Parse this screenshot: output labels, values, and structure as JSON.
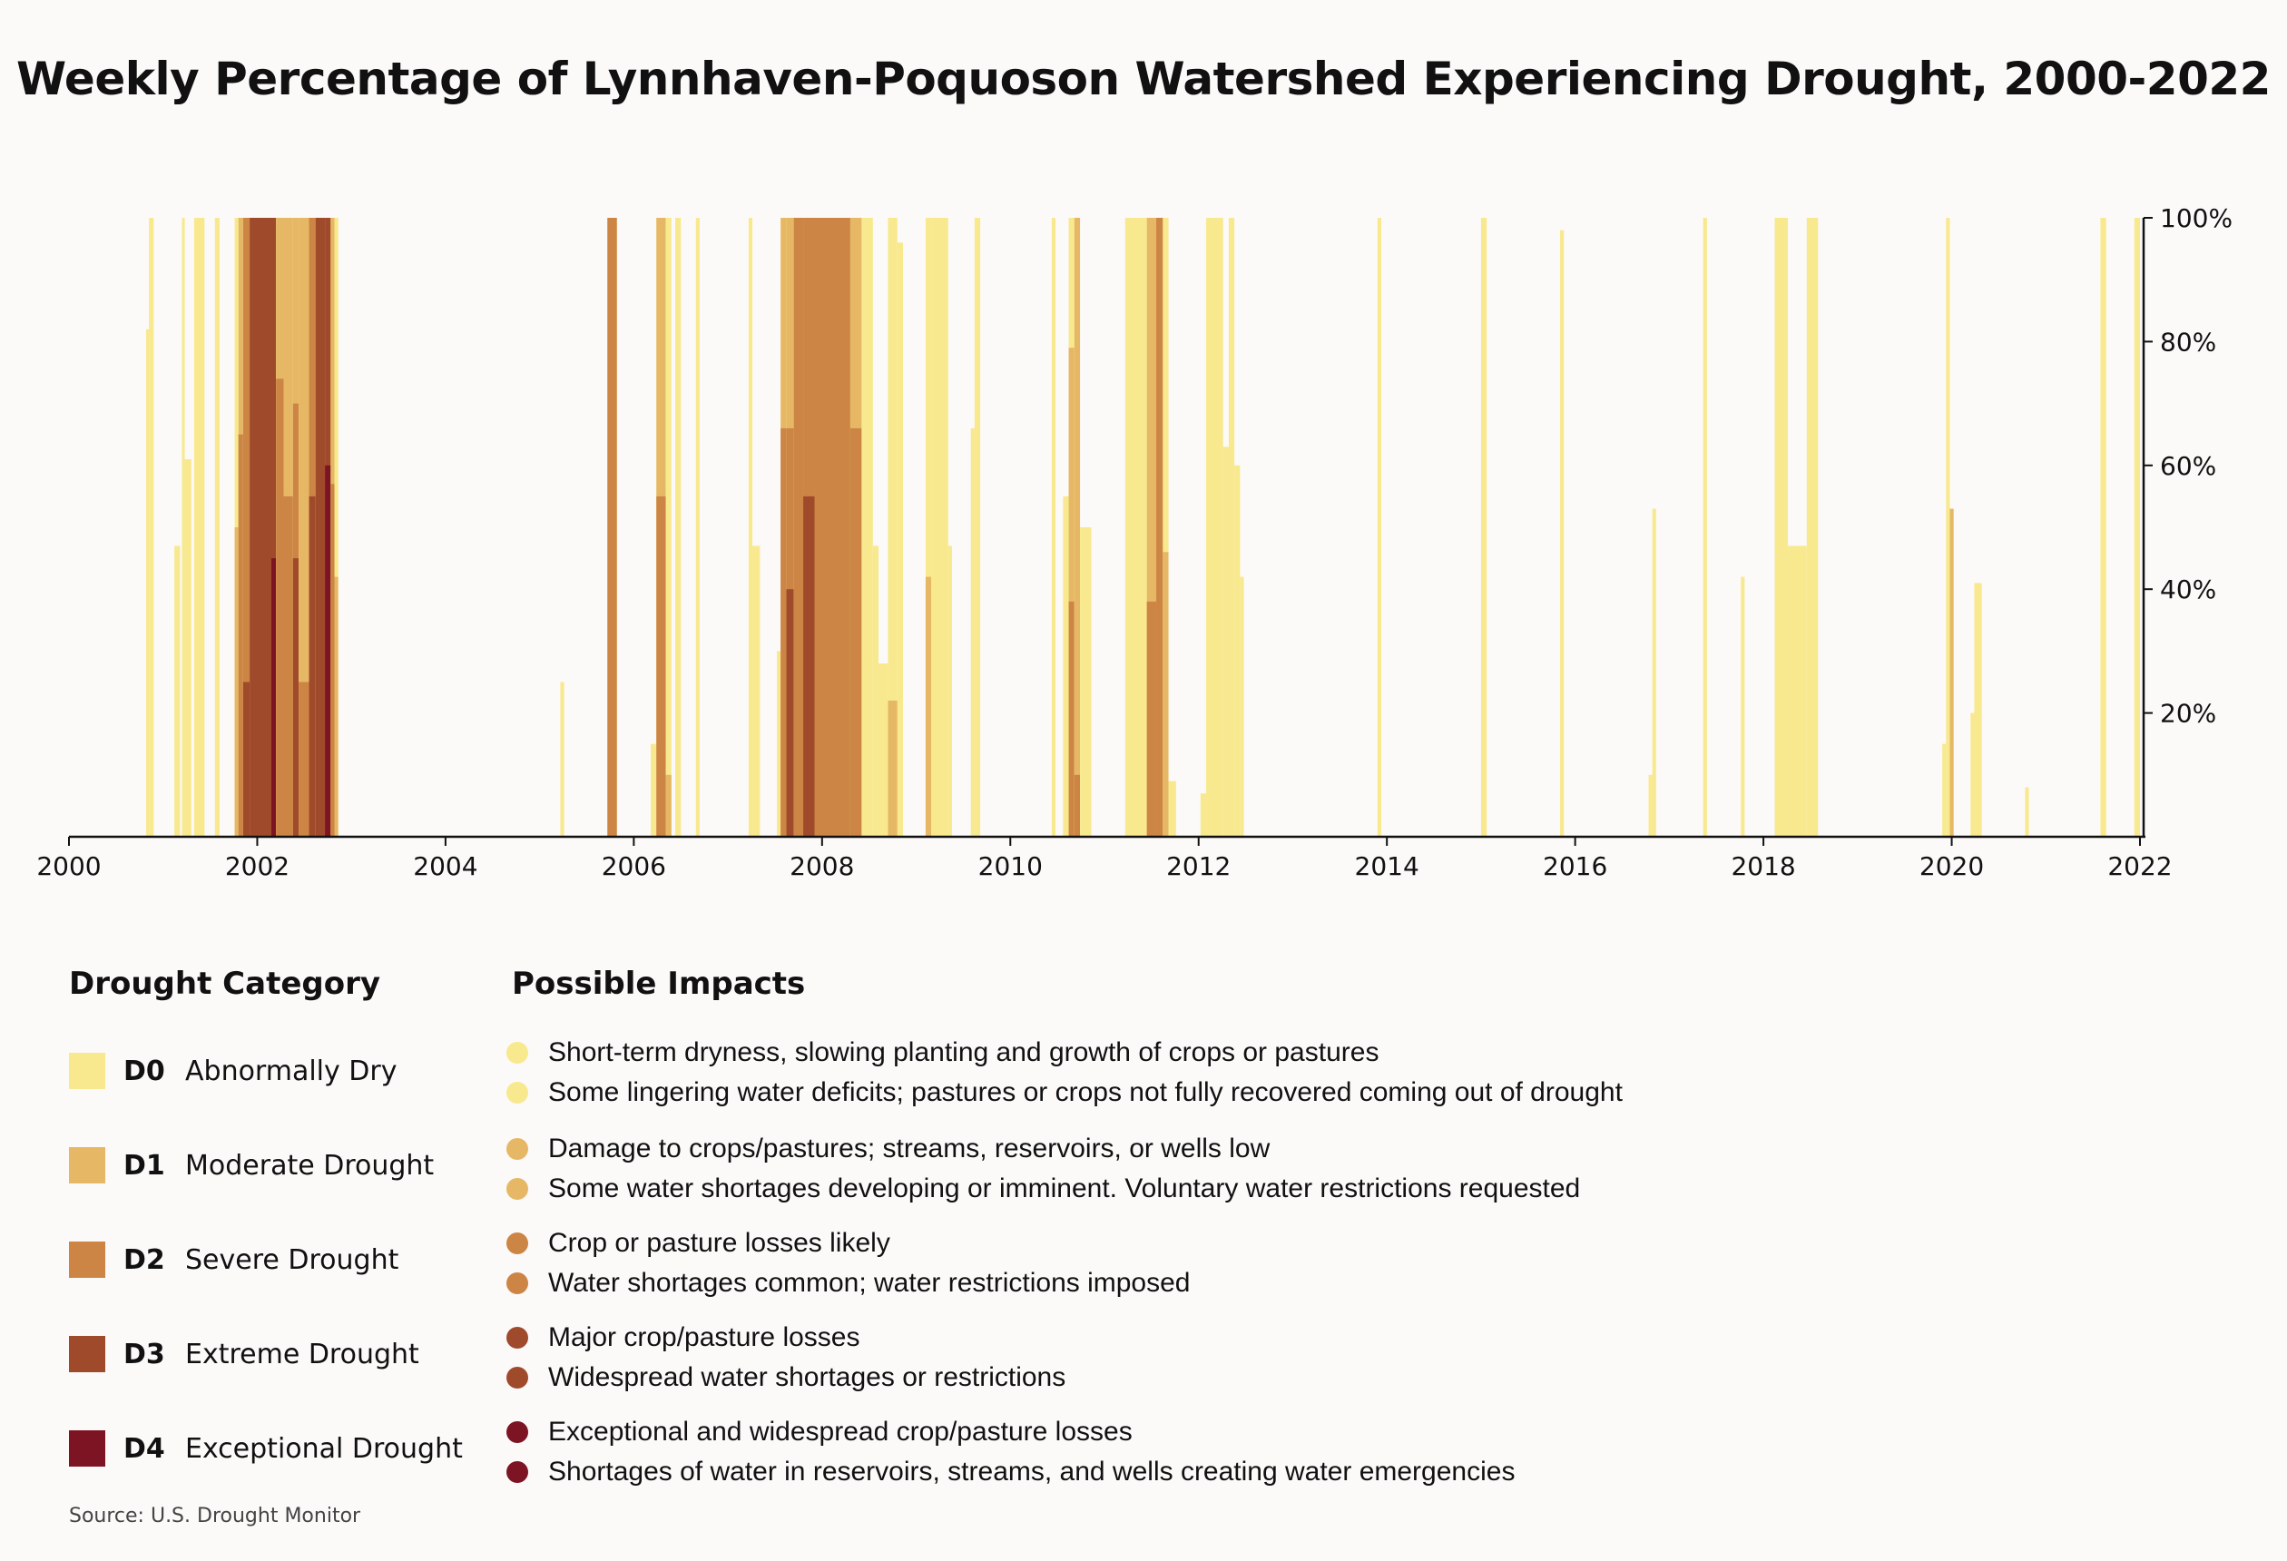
{
  "chart_data": {
    "type": "area",
    "title": "Weekly Percentage of Lynnhaven-Poquoson Watershed Experiencing Drought, 2000-2022",
    "xlabel": "",
    "ylabel": "",
    "xlim": [
      2000,
      2022
    ],
    "ylim": [
      0,
      100
    ],
    "x_ticks": [
      "2000",
      "2002",
      "2004",
      "2006",
      "2008",
      "2010",
      "2012",
      "2014",
      "2016",
      "2018",
      "2020",
      "2022"
    ],
    "y_ticks": [
      "20%",
      "40%",
      "60%",
      "80%",
      "100%"
    ],
    "y_axis_side": "right",
    "grid": false,
    "note": "Approximate weekly coverage read off the figure; each episode lists the start/end year and percent of area in each category (D0 = any drought or dryness, D1..D4 = at least that category).",
    "series_names": [
      "D0",
      "D1",
      "D2",
      "D3",
      "D4"
    ],
    "episodes": [
      {
        "start": 2000.82,
        "end": 2000.85,
        "D0": 82,
        "D1": 0,
        "D2": 0,
        "D3": 0,
        "D4": 0
      },
      {
        "start": 2000.85,
        "end": 2000.9,
        "D0": 100,
        "D1": 0,
        "D2": 0,
        "D3": 0,
        "D4": 0
      },
      {
        "start": 2001.12,
        "end": 2001.18,
        "D0": 47,
        "D1": 0,
        "D2": 0,
        "D3": 0,
        "D4": 0
      },
      {
        "start": 2001.2,
        "end": 2001.23,
        "D0": 100,
        "D1": 0,
        "D2": 0,
        "D3": 0,
        "D4": 0
      },
      {
        "start": 2001.23,
        "end": 2001.3,
        "D0": 61,
        "D1": 0,
        "D2": 0,
        "D3": 0,
        "D4": 0
      },
      {
        "start": 2001.33,
        "end": 2001.44,
        "D0": 100,
        "D1": 0,
        "D2": 0,
        "D3": 0,
        "D4": 0
      },
      {
        "start": 2001.55,
        "end": 2001.6,
        "D0": 100,
        "D1": 0,
        "D2": 0,
        "D3": 0,
        "D4": 0
      },
      {
        "start": 2001.76,
        "end": 2001.8,
        "D0": 100,
        "D1": 50,
        "D2": 0,
        "D3": 0,
        "D4": 0
      },
      {
        "start": 2001.8,
        "end": 2001.85,
        "D0": 100,
        "D1": 100,
        "D2": 65,
        "D3": 0,
        "D4": 0
      },
      {
        "start": 2001.85,
        "end": 2001.92,
        "D0": 100,
        "D1": 100,
        "D2": 100,
        "D3": 25,
        "D4": 0
      },
      {
        "start": 2001.92,
        "end": 2002.15,
        "D0": 100,
        "D1": 100,
        "D2": 100,
        "D3": 100,
        "D4": 0
      },
      {
        "start": 2002.15,
        "end": 2002.2,
        "D0": 100,
        "D1": 100,
        "D2": 100,
        "D3": 100,
        "D4": 45
      },
      {
        "start": 2002.2,
        "end": 2002.28,
        "D0": 100,
        "D1": 100,
        "D2": 74,
        "D3": 0,
        "D4": 0
      },
      {
        "start": 2002.28,
        "end": 2002.38,
        "D0": 100,
        "D1": 100,
        "D2": 55,
        "D3": 0,
        "D4": 0
      },
      {
        "start": 2002.38,
        "end": 2002.44,
        "D0": 100,
        "D1": 100,
        "D2": 70,
        "D3": 45,
        "D4": 0
      },
      {
        "start": 2002.44,
        "end": 2002.55,
        "D0": 100,
        "D1": 100,
        "D2": 25,
        "D3": 0,
        "D4": 0
      },
      {
        "start": 2002.55,
        "end": 2002.62,
        "D0": 100,
        "D1": 100,
        "D2": 100,
        "D3": 55,
        "D4": 0
      },
      {
        "start": 2002.62,
        "end": 2002.72,
        "D0": 100,
        "D1": 100,
        "D2": 100,
        "D3": 100,
        "D4": 0
      },
      {
        "start": 2002.72,
        "end": 2002.78,
        "D0": 100,
        "D1": 100,
        "D2": 100,
        "D3": 100,
        "D4": 60
      },
      {
        "start": 2002.78,
        "end": 2002.82,
        "D0": 100,
        "D1": 100,
        "D2": 57,
        "D3": 0,
        "D4": 0
      },
      {
        "start": 2002.82,
        "end": 2002.86,
        "D0": 100,
        "D1": 42,
        "D2": 0,
        "D3": 0,
        "D4": 0
      },
      {
        "start": 2005.22,
        "end": 2005.26,
        "D0": 25,
        "D1": 0,
        "D2": 0,
        "D3": 0,
        "D4": 0
      },
      {
        "start": 2005.72,
        "end": 2005.82,
        "D0": 100,
        "D1": 100,
        "D2": 100,
        "D3": 0,
        "D4": 0
      },
      {
        "start": 2006.18,
        "end": 2006.24,
        "D0": 15,
        "D1": 0,
        "D2": 0,
        "D3": 0,
        "D4": 0
      },
      {
        "start": 2006.24,
        "end": 2006.34,
        "D0": 100,
        "D1": 100,
        "D2": 55,
        "D3": 0,
        "D4": 0
      },
      {
        "start": 2006.34,
        "end": 2006.4,
        "D0": 100,
        "D1": 10,
        "D2": 0,
        "D3": 0,
        "D4": 0
      },
      {
        "start": 2006.44,
        "end": 2006.5,
        "D0": 100,
        "D1": 0,
        "D2": 0,
        "D3": 0,
        "D4": 0
      },
      {
        "start": 2006.66,
        "end": 2006.7,
        "D0": 100,
        "D1": 0,
        "D2": 0,
        "D3": 0,
        "D4": 0
      },
      {
        "start": 2007.22,
        "end": 2007.26,
        "D0": 100,
        "D1": 0,
        "D2": 0,
        "D3": 0,
        "D4": 0
      },
      {
        "start": 2007.26,
        "end": 2007.34,
        "D0": 47,
        "D1": 0,
        "D2": 0,
        "D3": 0,
        "D4": 0
      },
      {
        "start": 2007.52,
        "end": 2007.56,
        "D0": 30,
        "D1": 0,
        "D2": 0,
        "D3": 0,
        "D4": 0
      },
      {
        "start": 2007.56,
        "end": 2007.62,
        "D0": 100,
        "D1": 100,
        "D2": 66,
        "D3": 0,
        "D4": 0
      },
      {
        "start": 2007.62,
        "end": 2007.7,
        "D0": 100,
        "D1": 100,
        "D2": 66,
        "D3": 40,
        "D4": 0
      },
      {
        "start": 2007.7,
        "end": 2007.8,
        "D0": 100,
        "D1": 100,
        "D2": 100,
        "D3": 0,
        "D4": 0
      },
      {
        "start": 2007.8,
        "end": 2007.92,
        "D0": 100,
        "D1": 100,
        "D2": 100,
        "D3": 55,
        "D4": 0
      },
      {
        "start": 2007.92,
        "end": 2008.3,
        "D0": 100,
        "D1": 100,
        "D2": 100,
        "D3": 0,
        "D4": 0
      },
      {
        "start": 2008.3,
        "end": 2008.42,
        "D0": 100,
        "D1": 100,
        "D2": 66,
        "D3": 0,
        "D4": 0
      },
      {
        "start": 2008.42,
        "end": 2008.54,
        "D0": 100,
        "D1": 0,
        "D2": 0,
        "D3": 0,
        "D4": 0
      },
      {
        "start": 2008.54,
        "end": 2008.6,
        "D0": 47,
        "D1": 0,
        "D2": 0,
        "D3": 0,
        "D4": 0
      },
      {
        "start": 2008.6,
        "end": 2008.7,
        "D0": 28,
        "D1": 0,
        "D2": 0,
        "D3": 0,
        "D4": 0
      },
      {
        "start": 2008.7,
        "end": 2008.8,
        "D0": 100,
        "D1": 22,
        "D2": 0,
        "D3": 0,
        "D4": 0
      },
      {
        "start": 2008.8,
        "end": 2008.86,
        "D0": 96,
        "D1": 0,
        "D2": 0,
        "D3": 0,
        "D4": 0
      },
      {
        "start": 2009.1,
        "end": 2009.16,
        "D0": 100,
        "D1": 42,
        "D2": 0,
        "D3": 0,
        "D4": 0
      },
      {
        "start": 2009.16,
        "end": 2009.34,
        "D0": 100,
        "D1": 0,
        "D2": 0,
        "D3": 0,
        "D4": 0
      },
      {
        "start": 2009.34,
        "end": 2009.38,
        "D0": 47,
        "D1": 0,
        "D2": 0,
        "D3": 0,
        "D4": 0
      },
      {
        "start": 2009.58,
        "end": 2009.62,
        "D0": 66,
        "D1": 0,
        "D2": 0,
        "D3": 0,
        "D4": 0
      },
      {
        "start": 2009.62,
        "end": 2009.68,
        "D0": 100,
        "D1": 0,
        "D2": 0,
        "D3": 0,
        "D4": 0
      },
      {
        "start": 2010.44,
        "end": 2010.48,
        "D0": 100,
        "D1": 0,
        "D2": 0,
        "D3": 0,
        "D4": 0
      },
      {
        "start": 2010.56,
        "end": 2010.62,
        "D0": 55,
        "D1": 0,
        "D2": 0,
        "D3": 0,
        "D4": 0
      },
      {
        "start": 2010.62,
        "end": 2010.68,
        "D0": 100,
        "D1": 79,
        "D2": 38,
        "D3": 0,
        "D4": 0
      },
      {
        "start": 2010.68,
        "end": 2010.74,
        "D0": 100,
        "D1": 100,
        "D2": 10,
        "D3": 0,
        "D4": 0
      },
      {
        "start": 2010.74,
        "end": 2010.86,
        "D0": 50,
        "D1": 0,
        "D2": 0,
        "D3": 0,
        "D4": 0
      },
      {
        "start": 2011.22,
        "end": 2011.45,
        "D0": 100,
        "D1": 0,
        "D2": 0,
        "D3": 0,
        "D4": 0
      },
      {
        "start": 2011.45,
        "end": 2011.55,
        "D0": 100,
        "D1": 100,
        "D2": 38,
        "D3": 0,
        "D4": 0
      },
      {
        "start": 2011.55,
        "end": 2011.62,
        "D0": 100,
        "D1": 100,
        "D2": 100,
        "D3": 0,
        "D4": 0
      },
      {
        "start": 2011.62,
        "end": 2011.68,
        "D0": 100,
        "D1": 46,
        "D2": 0,
        "D3": 0,
        "D4": 0
      },
      {
        "start": 2011.68,
        "end": 2011.76,
        "D0": 9,
        "D1": 0,
        "D2": 0,
        "D3": 0,
        "D4": 0
      },
      {
        "start": 2012.02,
        "end": 2012.08,
        "D0": 7,
        "D1": 0,
        "D2": 0,
        "D3": 0,
        "D4": 0
      },
      {
        "start": 2012.08,
        "end": 2012.26,
        "D0": 100,
        "D1": 0,
        "D2": 0,
        "D3": 0,
        "D4": 0
      },
      {
        "start": 2012.26,
        "end": 2012.32,
        "D0": 63,
        "D1": 0,
        "D2": 0,
        "D3": 0,
        "D4": 0
      },
      {
        "start": 2012.32,
        "end": 2012.38,
        "D0": 100,
        "D1": 0,
        "D2": 0,
        "D3": 0,
        "D4": 0
      },
      {
        "start": 2012.38,
        "end": 2012.44,
        "D0": 60,
        "D1": 0,
        "D2": 0,
        "D3": 0,
        "D4": 0
      },
      {
        "start": 2012.44,
        "end": 2012.48,
        "D0": 42,
        "D1": 0,
        "D2": 0,
        "D3": 0,
        "D4": 0
      },
      {
        "start": 2013.9,
        "end": 2013.94,
        "D0": 100,
        "D1": 0,
        "D2": 0,
        "D3": 0,
        "D4": 0
      },
      {
        "start": 2015.0,
        "end": 2015.06,
        "D0": 100,
        "D1": 0,
        "D2": 0,
        "D3": 0,
        "D4": 0
      },
      {
        "start": 2015.84,
        "end": 2015.88,
        "D0": 98,
        "D1": 0,
        "D2": 0,
        "D3": 0,
        "D4": 0
      },
      {
        "start": 2016.78,
        "end": 2016.82,
        "D0": 10,
        "D1": 0,
        "D2": 0,
        "D3": 0,
        "D4": 0
      },
      {
        "start": 2016.82,
        "end": 2016.86,
        "D0": 53,
        "D1": 0,
        "D2": 0,
        "D3": 0,
        "D4": 0
      },
      {
        "start": 2017.36,
        "end": 2017.4,
        "D0": 100,
        "D1": 0,
        "D2": 0,
        "D3": 0,
        "D4": 0
      },
      {
        "start": 2017.76,
        "end": 2017.8,
        "D0": 42,
        "D1": 0,
        "D2": 0,
        "D3": 0,
        "D4": 0
      },
      {
        "start": 2018.12,
        "end": 2018.26,
        "D0": 100,
        "D1": 0,
        "D2": 0,
        "D3": 0,
        "D4": 0
      },
      {
        "start": 2018.26,
        "end": 2018.46,
        "D0": 47,
        "D1": 0,
        "D2": 0,
        "D3": 0,
        "D4": 0
      },
      {
        "start": 2018.46,
        "end": 2018.58,
        "D0": 100,
        "D1": 0,
        "D2": 0,
        "D3": 0,
        "D4": 0
      },
      {
        "start": 2019.9,
        "end": 2019.94,
        "D0": 15,
        "D1": 0,
        "D2": 0,
        "D3": 0,
        "D4": 0
      },
      {
        "start": 2019.94,
        "end": 2019.98,
        "D0": 100,
        "D1": 0,
        "D2": 0,
        "D3": 0,
        "D4": 0
      },
      {
        "start": 2019.98,
        "end": 2020.02,
        "D0": 53,
        "D1": 53,
        "D2": 0,
        "D3": 0,
        "D4": 0
      },
      {
        "start": 2020.2,
        "end": 2020.24,
        "D0": 20,
        "D1": 0,
        "D2": 0,
        "D3": 0,
        "D4": 0
      },
      {
        "start": 2020.24,
        "end": 2020.32,
        "D0": 41,
        "D1": 0,
        "D2": 0,
        "D3": 0,
        "D4": 0
      },
      {
        "start": 2020.78,
        "end": 2020.82,
        "D0": 8,
        "D1": 0,
        "D2": 0,
        "D3": 0,
        "D4": 0
      },
      {
        "start": 2021.58,
        "end": 2021.64,
        "D0": 100,
        "D1": 0,
        "D2": 0,
        "D3": 0,
        "D4": 0
      },
      {
        "start": 2021.94,
        "end": 2022.0,
        "D0": 100,
        "D1": 0,
        "D2": 0,
        "D3": 0,
        "D4": 0
      }
    ]
  },
  "colors": {
    "D0": "#f8e98f",
    "D1": "#e6b865",
    "D2": "#cc8545",
    "D3": "#a04a2c",
    "D4": "#7d1423",
    "background": "#fcf9f9",
    "axis": "#111111"
  },
  "legend": {
    "category_heading": "Drought Category",
    "impacts_heading": "Possible Impacts",
    "categories": [
      {
        "code": "D0",
        "label": "Abnormally Dry",
        "color": "#f8e98f"
      },
      {
        "code": "D1",
        "label": "Moderate Drought",
        "color": "#e6b865"
      },
      {
        "code": "D2",
        "label": "Severe Drought",
        "color": "#cc8545"
      },
      {
        "code": "D3",
        "label": "Extreme Drought",
        "color": "#a04a2c"
      },
      {
        "code": "D4",
        "label": "Exceptional Drought",
        "color": "#7d1423"
      }
    ],
    "impacts": [
      [
        "Short-term dryness, slowing planting and growth of crops or pastures",
        "Some lingering water deficits; pastures or crops not fully recovered coming out of drought"
      ],
      [
        "Damage to crops/pastures; streams, reservoirs, or wells low",
        "Some water shortages developing or imminent. Voluntary water restrictions requested"
      ],
      [
        "Crop or pasture losses likely",
        "Water shortages common; water restrictions imposed"
      ],
      [
        "Major crop/pasture losses",
        "Widespread water shortages or restrictions"
      ],
      [
        "Exceptional and widespread crop/pasture losses",
        "Shortages of water in reservoirs, streams, and wells creating water emergencies"
      ]
    ]
  },
  "source": "Source: U.S. Drought Monitor"
}
